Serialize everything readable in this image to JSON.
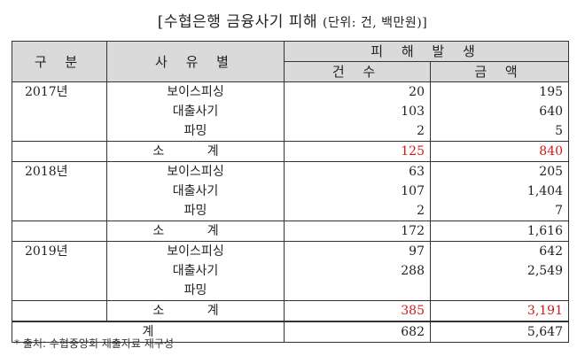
{
  "title": "[수협은행 금융사기 피해",
  "unit": "(단위: 건, 백만원)]",
  "headers": {
    "category": "구 분",
    "reason": "사 유 별",
    "damage": "피 해 발 생",
    "count": "건 수",
    "amount": "금 액"
  },
  "rows": [
    {
      "year": "2017년",
      "reason": "보이스피싱",
      "count": "20",
      "amount": "195"
    },
    {
      "year": "",
      "reason": "대출사기",
      "count": "103",
      "amount": "640"
    },
    {
      "year": "",
      "reason": "파밍",
      "count": "2",
      "amount": "5"
    },
    {
      "year": "",
      "reason": "소 계",
      "count": "125",
      "amount": "840",
      "subtotal": true,
      "highlight": true
    },
    {
      "year": "2018년",
      "reason": "보이스피싱",
      "count": "63",
      "amount": "205"
    },
    {
      "year": "",
      "reason": "대출사기",
      "count": "107",
      "amount": "1,404"
    },
    {
      "year": "",
      "reason": "파밍",
      "count": "2",
      "amount": "7"
    },
    {
      "year": "",
      "reason": "소 계",
      "count": "172",
      "amount": "1,616",
      "subtotal": true,
      "highlight": false
    },
    {
      "year": "2019년",
      "reason": "보이스피싱",
      "count": "97",
      "amount": "642"
    },
    {
      "year": "",
      "reason": "대출사기",
      "count": "288",
      "amount": "2,549"
    },
    {
      "year": "",
      "reason": "파밍",
      "count": "",
      "amount": ""
    },
    {
      "year": "",
      "reason": "소 계",
      "count": "385",
      "amount": "3,191",
      "subtotal": true,
      "highlight": true
    }
  ],
  "total": {
    "label": "계",
    "count": "682",
    "amount": "5,647"
  },
  "footnote": "* 출처: 수협중앙회 제출자료 재구성",
  "colors": {
    "highlight": "#d11a1a",
    "header_bg": "#dadada"
  }
}
